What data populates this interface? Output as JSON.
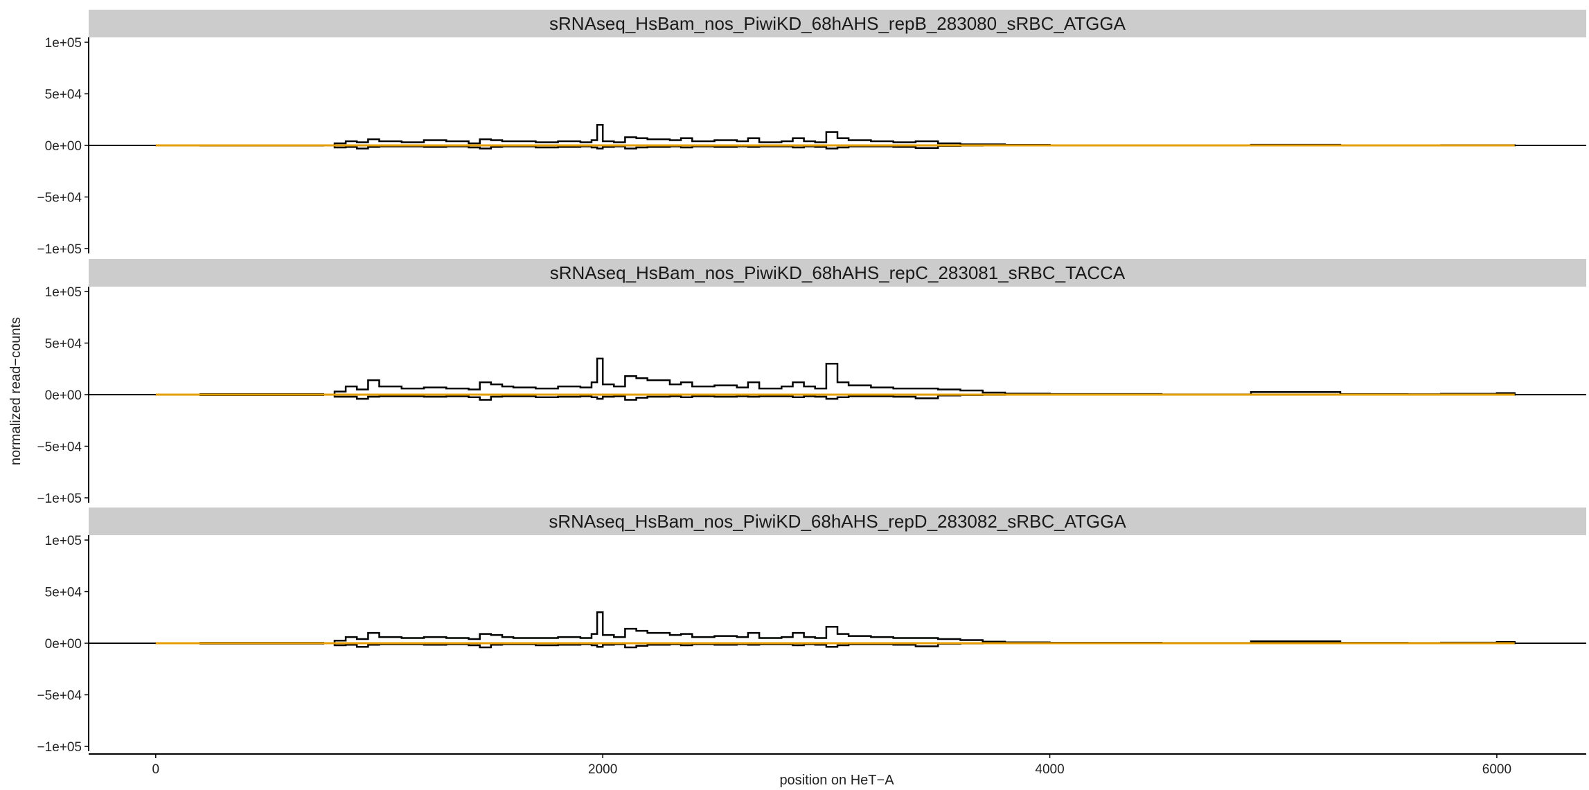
{
  "chart_data": {
    "type": "line",
    "xlabel": "position on HeT−A",
    "ylabel": "normalized read−counts",
    "xlim": [
      -300,
      6400
    ],
    "ylim": [
      -100000,
      100000
    ],
    "x_ticks": [
      0,
      2000,
      4000,
      6000
    ],
    "y_ticks": [
      100000,
      50000,
      0,
      -50000,
      -100000
    ],
    "y_tick_labels": [
      "1e+05",
      "5e+04",
      "0e+00",
      "−5e+04",
      "−1e+05"
    ],
    "x_tick_labels": [
      "0",
      "2000",
      "4000",
      "6000"
    ],
    "grid": false,
    "colors": {
      "signal": "#000000",
      "baseline": "#E69F00",
      "strip": "#cccccc"
    },
    "panels": [
      {
        "label": "sRNAseq_HsBam_nos_PiwiKD_68hAHS_repB_283080_sRBC_ATGGA",
        "x": [
          0,
          200,
          750,
          800,
          850,
          900,
          950,
          1000,
          1100,
          1200,
          1300,
          1400,
          1450,
          1500,
          1550,
          1600,
          1700,
          1800,
          1900,
          1950,
          1975,
          2000,
          2050,
          2100,
          2150,
          2200,
          2300,
          2350,
          2400,
          2500,
          2600,
          2650,
          2700,
          2800,
          2850,
          2900,
          2950,
          3000,
          3050,
          3100,
          3200,
          3300,
          3400,
          3500,
          3600,
          3700,
          3800,
          4000,
          4500,
          4900,
          5300,
          5600,
          5750,
          6000,
          6080
        ],
        "pos": [
          0,
          0,
          0,
          2000,
          4000,
          3000,
          6000,
          4000,
          3000,
          5000,
          4000,
          2000,
          6000,
          5000,
          4000,
          4000,
          3000,
          4000,
          3000,
          5000,
          20000,
          4000,
          3000,
          8000,
          7000,
          6000,
          5000,
          7000,
          4000,
          5000,
          4000,
          7000,
          3000,
          4000,
          7000,
          4000,
          3000,
          13000,
          7000,
          5000,
          4000,
          3000,
          4000,
          2000,
          1000,
          1000,
          500,
          200,
          100,
          600,
          200,
          200,
          300,
          300,
          0
        ],
        "neg": [
          0,
          -300,
          0,
          -2000,
          -1500,
          -3000,
          -1500,
          -1000,
          -1000,
          -1500,
          -1000,
          -2000,
          -3000,
          -1500,
          -1000,
          -1000,
          -2000,
          -1500,
          -1000,
          -2000,
          -3000,
          -1500,
          -1000,
          -3000,
          -2000,
          -1500,
          -1000,
          -2000,
          -1000,
          -1500,
          -1000,
          -1500,
          -1000,
          -1000,
          -2000,
          -1000,
          -1500,
          -3000,
          -2000,
          -1000,
          -1000,
          -1500,
          -2500,
          -500,
          -300,
          -200,
          -100,
          -100,
          -100,
          -100,
          -100,
          -100,
          -100,
          -100,
          0
        ]
      },
      {
        "label": "sRNAseq_HsBam_nos_PiwiKD_68hAHS_repC_283081_sRBC_TACCA",
        "x": [
          0,
          200,
          750,
          800,
          850,
          900,
          950,
          1000,
          1100,
          1200,
          1300,
          1400,
          1450,
          1500,
          1550,
          1600,
          1700,
          1800,
          1900,
          1950,
          1975,
          2000,
          2050,
          2100,
          2150,
          2200,
          2300,
          2350,
          2400,
          2500,
          2600,
          2650,
          2700,
          2800,
          2850,
          2900,
          2950,
          3000,
          3050,
          3100,
          3200,
          3300,
          3400,
          3500,
          3600,
          3700,
          3800,
          4000,
          4500,
          4900,
          5300,
          5600,
          5750,
          6000,
          6080
        ],
        "pos": [
          0,
          500,
          0,
          3000,
          8000,
          5000,
          14000,
          8000,
          6000,
          7000,
          6000,
          5000,
          12000,
          10000,
          8000,
          7000,
          6000,
          8000,
          7000,
          12000,
          35000,
          10000,
          8000,
          18000,
          16000,
          14000,
          10000,
          12000,
          8000,
          9000,
          7000,
          12000,
          6000,
          8000,
          12000,
          8000,
          6000,
          30000,
          12000,
          9000,
          7000,
          6000,
          6000,
          5000,
          4000,
          2000,
          1000,
          600,
          300,
          2500,
          500,
          400,
          800,
          1500,
          0
        ],
        "neg": [
          0,
          -500,
          0,
          -2000,
          -2000,
          -4000,
          -2000,
          -1500,
          -1500,
          -2000,
          -1500,
          -2500,
          -5000,
          -2000,
          -1500,
          -1500,
          -2500,
          -2000,
          -1500,
          -2500,
          -4000,
          -2000,
          -1500,
          -5000,
          -3000,
          -2000,
          -1500,
          -2500,
          -1500,
          -2000,
          -1500,
          -2000,
          -1500,
          -1500,
          -2500,
          -1500,
          -2000,
          -4000,
          -2500,
          -1500,
          -1500,
          -2000,
          -3500,
          -800,
          -400,
          -300,
          -200,
          -100,
          -100,
          -100,
          -100,
          -100,
          -100,
          -100,
          0
        ]
      },
      {
        "label": "sRNAseq_HsBam_nos_PiwiKD_68hAHS_repD_283082_sRBC_ATGGA",
        "x": [
          0,
          200,
          750,
          800,
          850,
          900,
          950,
          1000,
          1100,
          1200,
          1300,
          1400,
          1450,
          1500,
          1550,
          1600,
          1700,
          1800,
          1900,
          1950,
          1975,
          2000,
          2050,
          2100,
          2150,
          2200,
          2300,
          2350,
          2400,
          2500,
          2600,
          2650,
          2700,
          2800,
          2850,
          2900,
          2950,
          3000,
          3050,
          3100,
          3200,
          3300,
          3400,
          3500,
          3600,
          3700,
          3800,
          4000,
          4500,
          4900,
          5300,
          5600,
          5750,
          6000,
          6080
        ],
        "pos": [
          0,
          400,
          0,
          2500,
          6000,
          4000,
          10000,
          6000,
          5000,
          6000,
          5000,
          4000,
          9000,
          8000,
          6000,
          5000,
          5000,
          6000,
          5000,
          9000,
          30000,
          8000,
          6000,
          14000,
          12000,
          10000,
          8000,
          9000,
          6000,
          7000,
          6000,
          10000,
          5000,
          6000,
          10000,
          6000,
          5000,
          16000,
          9000,
          7000,
          6000,
          5000,
          5000,
          4000,
          3000,
          1500,
          800,
          500,
          300,
          1800,
          400,
          300,
          600,
          1200,
          0
        ],
        "neg": [
          0,
          -400,
          0,
          -2000,
          -1500,
          -3500,
          -1500,
          -1000,
          -1000,
          -1500,
          -1000,
          -2000,
          -4000,
          -1500,
          -1000,
          -1000,
          -2000,
          -1500,
          -1000,
          -2000,
          -3500,
          -1500,
          -1000,
          -4000,
          -2500,
          -1500,
          -1000,
          -2000,
          -1000,
          -1500,
          -1000,
          -1500,
          -1000,
          -1000,
          -2000,
          -1000,
          -1500,
          -3500,
          -2000,
          -1000,
          -1000,
          -1500,
          -3000,
          -600,
          -300,
          -200,
          -150,
          -100,
          -100,
          -100,
          -100,
          -100,
          -100,
          -100,
          0
        ]
      }
    ]
  }
}
